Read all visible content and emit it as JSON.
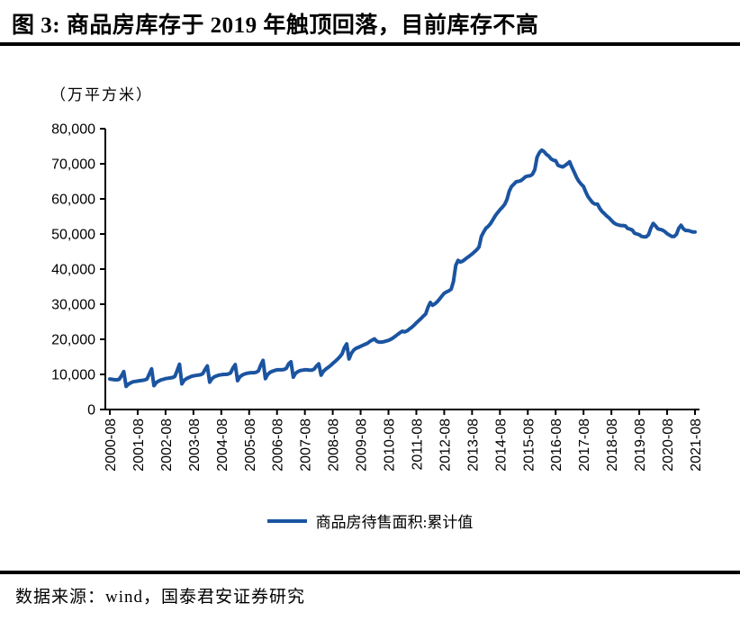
{
  "title": "图 3:  商品房库存于 2019 年触顶回落，目前库存不高",
  "source_note": "数据来源：wind，国泰君安证券研究",
  "legend": {
    "label": "商品房待售面积:累计值"
  },
  "chart_data": {
    "type": "line",
    "title": "商品房待售面积:累计值",
    "unit_label": "（万平方米）",
    "xlabel": "",
    "ylabel": "万平方米",
    "ylim": [
      0,
      80000
    ],
    "grid": false,
    "legend_position": "bottom",
    "line_color": "#1B54A0",
    "y_ticks": [
      0,
      10000,
      20000,
      30000,
      40000,
      50000,
      60000,
      70000,
      80000
    ],
    "y_tick_labels": [
      "0",
      "10,000",
      "20,000",
      "30,000",
      "40,000",
      "50,000",
      "60,000",
      "70,000",
      "80,000"
    ],
    "x_tick_labels": [
      "2000-08",
      "2001-08",
      "2002-08",
      "2003-08",
      "2004-08",
      "2005-08",
      "2006-08",
      "2007-08",
      "2008-08",
      "2009-08",
      "2010-08",
      "2011-08",
      "2012-08",
      "2013-08",
      "2014-08",
      "2015-08",
      "2016-08",
      "2017-08",
      "2018-08",
      "2019-08",
      "2020-08",
      "2021-08"
    ],
    "series": [
      {
        "name": "商品房待售面积:累计值",
        "color": "#1B54A0",
        "start": "2000-08",
        "frequency": "monthly",
        "values": [
          8700,
          8600,
          8500,
          8450,
          8600,
          9600,
          10800,
          6600,
          7200,
          7600,
          7900,
          8000,
          8100,
          8200,
          8300,
          8400,
          8700,
          10100,
          11600,
          6800,
          7700,
          8100,
          8400,
          8600,
          8800,
          8900,
          9000,
          9100,
          9400,
          11100,
          12900,
          7300,
          8300,
          8800,
          9100,
          9400,
          9600,
          9700,
          9800,
          9900,
          10200,
          11400,
          12400,
          7800,
          8800,
          9300,
          9600,
          9800,
          9900,
          10000,
          10000,
          10100,
          10400,
          11800,
          12800,
          8200,
          9300,
          9800,
          10100,
          10300,
          10400,
          10500,
          10500,
          10600,
          11000,
          12700,
          14000,
          8800,
          10000,
          10600,
          10900,
          11100,
          11300,
          11300,
          11300,
          11400,
          11700,
          13000,
          13600,
          9200,
          10300,
          10800,
          11100,
          11200,
          11300,
          11300,
          11200,
          11200,
          11500,
          12400,
          13000,
          9800,
          10900,
          11500,
          12000,
          12500,
          13100,
          13700,
          14300,
          15000,
          15800,
          17600,
          18700,
          14400,
          16000,
          16900,
          17400,
          17700,
          18000,
          18300,
          18600,
          18900,
          19400,
          19800,
          20100,
          19400,
          19200,
          19200,
          19300,
          19500,
          19700,
          20000,
          20400,
          20900,
          21400,
          21900,
          22300,
          22100,
          22400,
          22900,
          23400,
          24000,
          24700,
          25300,
          25900,
          26600,
          27200,
          29100,
          30500,
          29700,
          30100,
          30700,
          31500,
          32300,
          33100,
          33500,
          33800,
          34300,
          36500,
          41100,
          42500,
          42000,
          42300,
          42800,
          43300,
          43800,
          44300,
          44900,
          45500,
          46300,
          49300,
          50600,
          51700,
          52200,
          53000,
          54100,
          55200,
          56100,
          56900,
          57600,
          58400,
          59800,
          62200,
          63500,
          64200,
          64900,
          65000,
          65200,
          65700,
          66300,
          66500,
          66600,
          67000,
          68300,
          71900,
          73200,
          73900,
          73500,
          72700,
          72200,
          71400,
          71000,
          70900,
          69600,
          69300,
          69100,
          69500,
          70000,
          70600,
          69000,
          67600,
          66100,
          65000,
          64200,
          63500,
          61900,
          60600,
          59700,
          58900,
          58500,
          58500,
          57300,
          56400,
          55800,
          55100,
          54600,
          53900,
          53200,
          52800,
          52600,
          52400,
          52400,
          52300,
          51600,
          51400,
          51100,
          50200,
          50000,
          49800,
          49300,
          49200,
          49200,
          49800,
          51700,
          53000,
          52300,
          51500,
          51300,
          51100,
          50700,
          50100,
          49700,
          49300,
          49300,
          49900,
          51600,
          52500,
          51500,
          51000,
          51000,
          50800,
          50600,
          50600
        ]
      }
    ]
  }
}
